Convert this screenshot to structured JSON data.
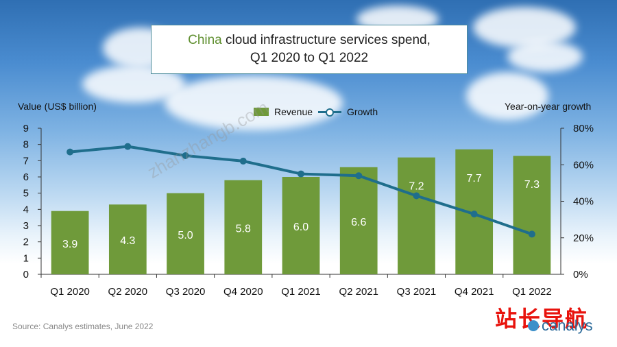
{
  "title_accent": "China",
  "title_rest_line1": " cloud infrastructure services spend,",
  "title_line2": "Q1 2020 to Q1 2022",
  "source": "Source: Canalys estimates, June 2022",
  "watermark": "zhanzhangb.com",
  "watermark_cn": "站长导航",
  "brand": "canalys",
  "colors": {
    "bar": "#6f9a3a",
    "line": "#1f6e8c",
    "accent": "#5f8f2f"
  },
  "chart_data": {
    "type": "bar",
    "title": "China cloud infrastructure services spend, Q1 2020 to Q1 2022",
    "categories": [
      "Q1 2020",
      "Q2 2020",
      "Q3 2020",
      "Q4 2020",
      "Q1 2021",
      "Q2 2021",
      "Q3 2021",
      "Q4 2021",
      "Q1 2022"
    ],
    "series": [
      {
        "name": "Revenue",
        "type": "bar",
        "axis": "left",
        "values": [
          3.9,
          4.3,
          5.0,
          5.8,
          6.0,
          6.6,
          7.2,
          7.7,
          7.3
        ],
        "labels": [
          "3.9",
          "4.3",
          "5.0",
          "5.8",
          "6.0",
          "6.6",
          "7.2",
          "7.7",
          "7.3"
        ]
      },
      {
        "name": "Growth",
        "type": "line",
        "axis": "right",
        "values": [
          67,
          70,
          65,
          62,
          55,
          54,
          43,
          33,
          22
        ]
      }
    ],
    "ylabel": "Value (US$ billion)",
    "ylabel_right": "Year-on-year growth",
    "ylim": [
      0,
      9
    ],
    "ylim_right": [
      0,
      80
    ],
    "yticks": [
      "0",
      "1",
      "2",
      "3",
      "4",
      "5",
      "6",
      "7",
      "8",
      "9"
    ],
    "yticks_right": [
      "0%",
      "20%",
      "40%",
      "60%",
      "80%"
    ],
    "legend": [
      "Revenue",
      "Growth"
    ],
    "legend_position": "top-center"
  }
}
